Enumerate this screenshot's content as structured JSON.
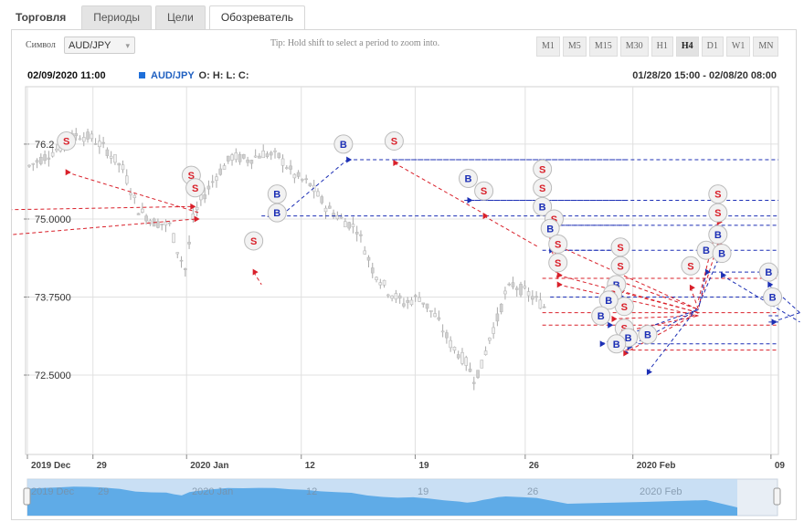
{
  "tabs": [
    {
      "label": "Торговля"
    },
    {
      "label": "Периоды"
    },
    {
      "label": "Цели"
    },
    {
      "label": "Обозреватель"
    }
  ],
  "symbol": {
    "label": "Символ",
    "value": "AUD/JPY"
  },
  "tip": "Tip: Hold shift to select a period to zoom into.",
  "periods": [
    "M1",
    "M5",
    "M15",
    "M30",
    "H1",
    "H4",
    "D1",
    "W1",
    "MN"
  ],
  "active_period": "H4",
  "info": {
    "datetime": "02/09/2020 11:00",
    "symbol": "AUD/JPY",
    "ohlc": "O: H: L: C:",
    "range": "01/28/20 15:00 - 02/08/20 08:00"
  },
  "colors": {
    "sell": "#d9202a",
    "buy": "#1c2fb5",
    "navigator": "#5aa8e6"
  },
  "chart_data": {
    "type": "line",
    "title": "",
    "y_ticks": [
      "76.2",
      "75.0000",
      "73.7500",
      "72.5000"
    ],
    "ylim": [
      71.6,
      76.8
    ],
    "x_ticks": [
      "2019 Dec",
      "29",
      "2020 Jan",
      "12",
      "19",
      "26",
      "2020 Feb",
      "09"
    ],
    "navigator_ticks": [
      "2019 Dec",
      "29",
      "2020 Jan",
      "12",
      "19",
      "26",
      "2020 Feb"
    ],
    "price_series": {
      "name": "",
      "x_day": [
        0,
        2,
        4,
        6,
        8,
        10,
        12,
        14,
        16,
        18,
        19,
        20,
        21,
        22,
        24,
        26,
        28,
        30,
        32,
        34,
        36,
        38,
        40,
        42,
        44,
        46,
        48,
        50,
        52,
        54,
        56,
        57,
        58,
        59,
        60,
        61,
        62,
        64,
        66
      ],
      "values": [
        75.85,
        76.0,
        76.15,
        76.35,
        76.3,
        76.1,
        75.8,
        75.15,
        74.95,
        74.9,
        74.5,
        74.2,
        75.0,
        75.3,
        75.7,
        76.0,
        75.95,
        76.05,
        76.0,
        75.7,
        75.55,
        75.2,
        75.0,
        74.85,
        74.2,
        73.85,
        73.65,
        73.75,
        73.45,
        73.0,
        72.7,
        72.45,
        72.65,
        73.1,
        73.4,
        73.8,
        73.95,
        73.8,
        73.6
      ]
    },
    "signals": [
      {
        "type": "S",
        "label_day": 5,
        "label_price": 76.25,
        "entry_day": 5,
        "entry_price": 75.75,
        "exit_day": 22,
        "exit_price": 75.1
      },
      {
        "type": "S",
        "label_day": 21,
        "label_price": 75.7,
        "entry_day": 21,
        "entry_price": 75.2,
        "exit_day": -2,
        "exit_price": 75.15
      },
      {
        "type": "S",
        "label_day": 21.5,
        "label_price": 75.5,
        "entry_day": 21.5,
        "entry_price": 75.0,
        "exit_day": -2,
        "exit_price": 74.75
      },
      {
        "type": "S",
        "label_day": 29,
        "label_price": 74.65,
        "entry_day": 29,
        "entry_price": 74.15,
        "exit_day": 30,
        "exit_price": 73.95
      },
      {
        "type": "B",
        "label_day": 32,
        "label_price": 75.4,
        "entry_day": 32,
        "entry_price": 75.0,
        "exit_day": 30.5,
        "exit_price": 75.05
      },
      {
        "type": "B",
        "label_day": 32,
        "label_price": 75.1,
        "entry_day": 32,
        "entry_price": 75.0,
        "exit_day": 41,
        "exit_price": 75.95
      },
      {
        "type": "B",
        "label_day": 40.5,
        "label_price": 76.2,
        "entry_day": 41,
        "entry_price": 75.95,
        "exit_day": 77,
        "exit_price": 75.95
      },
      {
        "type": "S",
        "label_day": 47,
        "label_price": 76.25,
        "entry_day": 47,
        "entry_price": 75.9,
        "exit_day": 59,
        "exit_price": 75.05
      },
      {
        "type": "B",
        "label_day": 56.5,
        "label_price": 75.65,
        "entry_day": 56.5,
        "entry_price": 75.3,
        "exit_day": 77,
        "exit_price": 75.3
      },
      {
        "type": "S",
        "label_day": 58.5,
        "label_price": 75.45,
        "entry_day": 58.5,
        "entry_price": 75.05,
        "exit_day": 65.5,
        "exit_price": 74.55
      },
      {
        "type": "S",
        "label_day": 66,
        "label_price": 75.8,
        "entry_day": 66,
        "entry_price": 75.4,
        "exit_day": 68,
        "exit_price": 74.25
      },
      {
        "type": "S",
        "label_day": 66,
        "label_price": 75.5,
        "entry_day": 66.5,
        "entry_price": 75.0,
        "exit_day": 68,
        "exit_price": 74.0
      },
      {
        "type": "B",
        "label_day": 66,
        "label_price": 75.2,
        "entry_day": 66.5,
        "entry_price": 74.9,
        "exit_day": 77,
        "exit_price": 74.9
      },
      {
        "type": "S",
        "label_day": 67.5,
        "label_price": 75.0,
        "entry_day": 67.5,
        "entry_price": 74.6,
        "exit_day": 86,
        "exit_price": 73.55
      },
      {
        "type": "B",
        "label_day": 67,
        "label_price": 74.85,
        "entry_day": 67,
        "entry_price": 74.5,
        "exit_day": 77,
        "exit_price": 74.5
      },
      {
        "type": "S",
        "label_day": 68,
        "label_price": 74.6,
        "entry_day": 68,
        "entry_price": 74.1,
        "exit_day": 86,
        "exit_price": 73.5
      },
      {
        "type": "S",
        "label_day": 68,
        "label_price": 74.3,
        "entry_day": 68,
        "entry_price": 73.95,
        "exit_day": 86,
        "exit_price": 73.45
      },
      {
        "type": "S",
        "label_day": 76,
        "label_price": 74.55,
        "entry_day": 76,
        "entry_price": 74.0,
        "exit_day": 86,
        "exit_price": 73.55
      },
      {
        "type": "S",
        "label_day": 76,
        "label_price": 74.25,
        "entry_day": 76,
        "entry_price": 73.85,
        "exit_day": 86,
        "exit_price": 73.5
      },
      {
        "type": "B",
        "label_day": 75.5,
        "label_price": 73.95,
        "entry_day": 76,
        "entry_price": 73.75,
        "exit_day": 77,
        "exit_price": 73.75
      },
      {
        "type": "S",
        "label_day": 75,
        "label_price": 73.8,
        "entry_day": 75,
        "entry_price": 73.4,
        "exit_day": 86,
        "exit_price": 73.45
      },
      {
        "type": "S",
        "label_day": 76.5,
        "label_price": 73.6,
        "entry_day": 76.5,
        "entry_price": 73.2,
        "exit_day": 86,
        "exit_price": 73.45
      },
      {
        "type": "B",
        "label_day": 74.5,
        "label_price": 73.7,
        "entry_day": 74.5,
        "entry_price": 73.3,
        "exit_day": 77,
        "exit_price": 73.3
      },
      {
        "type": "B",
        "label_day": 73.5,
        "label_price": 73.45,
        "entry_day": 73.5,
        "entry_price": 73.0,
        "exit_day": 86,
        "exit_price": 73.55
      },
      {
        "type": "S",
        "label_day": 76.5,
        "label_price": 73.25,
        "entry_day": 76.5,
        "entry_price": 72.85,
        "exit_day": 86,
        "exit_price": 73.5
      },
      {
        "type": "B",
        "label_day": 77,
        "label_price": 73.1,
        "entry_day": 77,
        "entry_price": 72.95,
        "exit_day": 86,
        "exit_price": 73.55
      },
      {
        "type": "B",
        "label_day": 79.5,
        "label_price": 73.15,
        "entry_day": 79.5,
        "entry_price": 72.55,
        "exit_day": 86,
        "exit_price": 73.6
      },
      {
        "type": "B",
        "label_day": 75.5,
        "label_price": 73.0,
        "entry_day": 76,
        "entry_price": 72.95,
        "exit_day": 77,
        "exit_price": 72.85
      },
      {
        "type": "S",
        "label_day": 85,
        "label_price": 74.25,
        "entry_day": 85,
        "entry_price": 73.9,
        "exit_day": 86,
        "exit_price": 73.55
      },
      {
        "type": "B",
        "label_day": 87,
        "label_price": 74.5,
        "entry_day": 87,
        "entry_price": 74.15,
        "exit_day": 86,
        "exit_price": 73.55
      },
      {
        "type": "S",
        "label_day": 88.5,
        "label_price": 75.1,
        "entry_day": 88.5,
        "entry_price": 74.6,
        "exit_day": 86,
        "exit_price": 73.6
      },
      {
        "type": "B",
        "label_day": 88.5,
        "label_price": 74.75,
        "entry_day": 88.5,
        "entry_price": 74.35,
        "exit_day": 86,
        "exit_price": 73.6
      },
      {
        "type": "S",
        "label_day": 88.5,
        "label_price": 75.4,
        "entry_day": 88.5,
        "entry_price": 74.95,
        "exit_day": 86,
        "exit_price": 73.7
      },
      {
        "type": "B",
        "label_day": 89,
        "label_price": 74.45,
        "entry_day": 89,
        "entry_price": 74.1,
        "exit_day": 99,
        "exit_price": 73.35
      },
      {
        "type": "B",
        "label_day": 95,
        "label_price": 74.15,
        "entry_day": 95,
        "entry_price": 73.95,
        "exit_day": 99,
        "exit_price": 73.5
      },
      {
        "type": "B",
        "label_day": 95.5,
        "label_price": 73.75,
        "entry_day": 95.5,
        "entry_price": 73.35,
        "exit_day": 99,
        "exit_price": 73.5
      }
    ],
    "horizontal_levels": [
      {
        "type": "buy",
        "price": 75.95,
        "from_day": 47
      },
      {
        "type": "buy",
        "price": 75.3,
        "from_day": 56
      },
      {
        "type": "buy",
        "price": 75.05,
        "from_day": 30
      },
      {
        "type": "buy",
        "price": 74.9,
        "from_day": 66
      },
      {
        "type": "buy",
        "price": 74.5,
        "from_day": 66
      },
      {
        "type": "buy",
        "price": 74.15,
        "from_day": 87
      },
      {
        "type": "sell",
        "price": 74.05,
        "from_day": 66
      },
      {
        "type": "buy",
        "price": 73.75,
        "from_day": 67
      },
      {
        "type": "sell",
        "price": 73.5,
        "from_day": 66
      },
      {
        "type": "buy",
        "price": 73.45,
        "from_day": 95
      },
      {
        "type": "buy",
        "price": 73.35,
        "from_day": 95
      },
      {
        "type": "sell",
        "price": 73.3,
        "from_day": 66
      },
      {
        "type": "buy",
        "price": 73.0,
        "from_day": 75
      },
      {
        "type": "sell",
        "price": 72.9,
        "from_day": 75
      }
    ]
  }
}
